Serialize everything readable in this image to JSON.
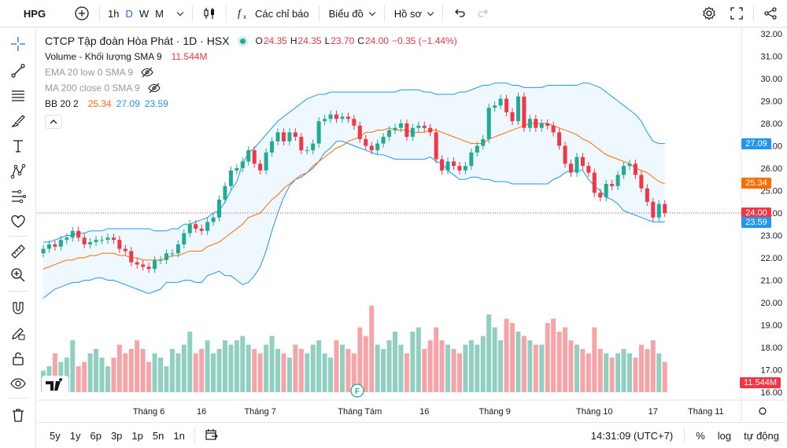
{
  "toolbar": {
    "symbol": "HPG",
    "intervals": [
      "1h",
      "D",
      "W",
      "M"
    ],
    "active_interval": "D",
    "indicators_label": "Các chỉ báo",
    "chart_type_label": "Biểu đồ",
    "profile_label": "Hồ sơ"
  },
  "legend": {
    "title": "CTCP Tập đoàn Hòa Phát · 1D · HSX",
    "ohlc": {
      "o_label": "O",
      "o": "24.35",
      "h_label": "H",
      "h": "24.35",
      "l_label": "L",
      "l": "23.70",
      "c_label": "C",
      "c": "24.00",
      "change": "−0.35 (−1.44%)"
    },
    "volume_label": "Volume - Khối lượng SMA 9",
    "volume_value": "11.544M",
    "ema_label": "EMA 20 low 0 SMA 9",
    "ma_label": "MA 200 close 0 SMA 9",
    "bb_label": "BB 20 2",
    "bb_values": [
      "25.34",
      "27.09",
      "23.59"
    ]
  },
  "price_axis": [
    "32.00",
    "31.00",
    "30.00",
    "29.00",
    "28.00",
    "27.00",
    "26.00",
    "25.00",
    "24.00",
    "23.00",
    "22.00",
    "21.00",
    "20.00",
    "19.00",
    "18.00",
    "17.00",
    "16.00"
  ],
  "time_axis": [
    "Tháng 6",
    "16",
    "Tháng 7",
    "Tháng Tám",
    "16",
    "Tháng 9",
    "Tháng 10",
    "17",
    "Tháng 11"
  ],
  "badges": {
    "bb_upper": "27.09",
    "bb_mid": "25.34",
    "last": "24.00",
    "bb_lower": "23.59",
    "volume": "11.544M"
  },
  "bottom": {
    "ranges": [
      "5y",
      "1y",
      "6p",
      "3p",
      "1p",
      "5n",
      "1n"
    ],
    "time": "14:31:09 (UTC+7)",
    "pct": "%",
    "log": "log",
    "auto": "tự động"
  },
  "colors": {
    "up": "#22ab94",
    "down": "#f23645",
    "bb_basis": "#ff6d00",
    "bb_band": "#2196f3",
    "vol_up": "#91d0c1",
    "vol_down": "#f7a4a9"
  },
  "chart_data": {
    "type": "candlestick",
    "x_unit": "trading day",
    "ylim": [
      16,
      32
    ],
    "closes": [
      22.4,
      22.6,
      22.5,
      22.8,
      22.9,
      23.2,
      22.9,
      22.6,
      22.7,
      22.8,
      22.8,
      22.9,
      22.8,
      22.4,
      22.3,
      21.8,
      21.7,
      21.6,
      21.5,
      21.9,
      21.9,
      22.2,
      22.2,
      22.6,
      23.1,
      23.5,
      23.3,
      23.2,
      23.6,
      23.8,
      24.6,
      25.2,
      25.9,
      26.0,
      26.3,
      26.8,
      26.2,
      25.9,
      26.7,
      27.2,
      27.6,
      27.2,
      27.6,
      27.4,
      26.8,
      26.8,
      27.1,
      28.1,
      28.2,
      28.4,
      28.2,
      28.3,
      28.2,
      27.9,
      27.3,
      27.0,
      26.8,
      27.1,
      27.4,
      27.7,
      27.8,
      28.0,
      27.4,
      27.8,
      27.9,
      27.8,
      27.6,
      26.4,
      25.9,
      26.3,
      26.1,
      25.9,
      26.1,
      26.7,
      27.0,
      27.3,
      28.7,
      28.8,
      29.1,
      28.5,
      28.1,
      29.2,
      27.8,
      28.2,
      27.8,
      28.0,
      27.9,
      27.6,
      27.0,
      26.2,
      25.8,
      26.5,
      26.1,
      25.8,
      24.9,
      24.7,
      25.3,
      25.2,
      25.7,
      26.1,
      26.2,
      25.7,
      25.1,
      24.5,
      23.8,
      24.4,
      24.0
    ],
    "bb_lower": [
      20.2,
      20.4,
      20.6,
      20.7,
      20.8,
      20.9,
      20.9,
      21.0,
      21.0,
      21.1,
      21.1,
      21.0,
      21.0,
      20.9,
      20.8,
      20.7,
      20.6,
      20.5,
      20.4,
      20.5,
      20.6,
      20.9,
      20.9,
      20.9,
      21.0,
      21.0,
      20.9,
      20.9,
      21.2,
      21.3,
      21.4,
      21.2,
      21.2,
      21.0,
      20.8,
      20.9,
      21.2,
      21.6,
      22.3,
      23.2,
      24.0,
      24.7,
      25.2,
      25.5,
      25.6,
      25.8,
      26.0,
      26.3,
      26.7,
      26.9,
      27.2,
      27.2,
      27.1,
      27.0,
      26.9,
      26.8,
      26.7,
      26.6,
      26.6,
      26.5,
      26.4,
      26.4,
      26.4,
      26.4,
      26.4,
      26.4,
      26.5,
      26.3,
      26.2,
      25.9,
      25.7,
      25.5,
      25.5,
      25.6,
      25.6,
      25.5,
      25.5,
      25.4,
      25.4,
      25.4,
      25.3,
      25.3,
      25.3,
      25.3,
      25.3,
      25.3,
      25.3,
      25.5,
      25.6,
      25.8,
      25.9,
      25.9,
      25.9,
      25.5,
      25.2,
      25.0,
      24.7,
      24.6,
      24.4,
      24.1,
      24.0,
      23.9,
      23.8,
      23.7,
      23.6,
      23.6,
      23.6
    ],
    "bb_basis": [
      21.5,
      21.6,
      21.7,
      21.8,
      21.9,
      21.9,
      22.0,
      22.0,
      22.1,
      22.1,
      22.2,
      22.2,
      22.2,
      22.1,
      22.1,
      22.0,
      22.0,
      21.9,
      21.9,
      21.9,
      21.9,
      22.0,
      22.1,
      22.1,
      22.2,
      22.3,
      22.3,
      22.3,
      22.5,
      22.6,
      22.7,
      22.9,
      23.1,
      23.3,
      23.5,
      23.8,
      23.9,
      24.0,
      24.3,
      24.6,
      24.8,
      25.1,
      25.3,
      25.5,
      25.7,
      25.8,
      26.1,
      26.3,
      26.5,
      26.7,
      26.9,
      27.0,
      27.2,
      27.3,
      27.4,
      27.6,
      27.6,
      27.7,
      27.7,
      27.8,
      27.7,
      27.7,
      27.7,
      27.6,
      27.6,
      27.6,
      27.7,
      27.7,
      27.6,
      27.5,
      27.4,
      27.3,
      27.2,
      27.1,
      27.1,
      27.1,
      27.3,
      27.4,
      27.5,
      27.6,
      27.7,
      27.8,
      27.9,
      28.0,
      28.0,
      28.0,
      28.0,
      27.9,
      27.8,
      27.7,
      27.6,
      27.5,
      27.3,
      27.2,
      27.0,
      26.8,
      26.6,
      26.5,
      26.4,
      26.3,
      26.2,
      26.0,
      25.9,
      25.8,
      25.6,
      25.4,
      25.3
    ],
    "bb_upper": [
      22.7,
      22.7,
      22.8,
      22.9,
      23.0,
      23.0,
      23.1,
      23.1,
      23.2,
      23.2,
      23.2,
      23.3,
      23.3,
      23.3,
      23.3,
      23.3,
      23.3,
      23.3,
      23.3,
      23.2,
      23.2,
      23.2,
      23.3,
      23.3,
      23.5,
      23.5,
      23.6,
      23.7,
      23.8,
      24.0,
      24.1,
      24.5,
      25.0,
      25.4,
      26.2,
      26.7,
      26.9,
      27.2,
      27.5,
      27.8,
      28.1,
      28.3,
      28.5,
      28.7,
      28.9,
      29.1,
      29.2,
      29.3,
      29.3,
      29.4,
      29.4,
      29.4,
      29.4,
      29.4,
      29.4,
      29.4,
      29.4,
      29.4,
      29.4,
      29.4,
      29.4,
      29.5,
      29.5,
      29.5,
      29.5,
      29.4,
      29.4,
      29.3,
      29.3,
      29.3,
      29.3,
      29.4,
      29.4,
      29.5,
      29.6,
      29.7,
      29.7,
      29.8,
      29.8,
      29.8,
      29.7,
      29.7,
      29.6,
      29.6,
      29.6,
      29.6,
      29.7,
      29.7,
      29.7,
      29.7,
      29.7,
      29.7,
      29.8,
      29.8,
      29.7,
      29.6,
      29.4,
      29.2,
      29.0,
      28.8,
      28.6,
      28.4,
      28.1,
      27.6,
      27.2,
      27.1,
      27.1
    ],
    "bb_current": {
      "basis": 25.34,
      "upper": 27.09,
      "lower": 23.59
    },
    "last_price": 24.0,
    "volume_last": "11.544M",
    "x_tick_labels": [
      "Tháng 6",
      "16",
      "Tháng 7",
      "Tháng Tám",
      "16",
      "Tháng 9",
      "Tháng 10",
      "17",
      "Tháng 11"
    ]
  }
}
